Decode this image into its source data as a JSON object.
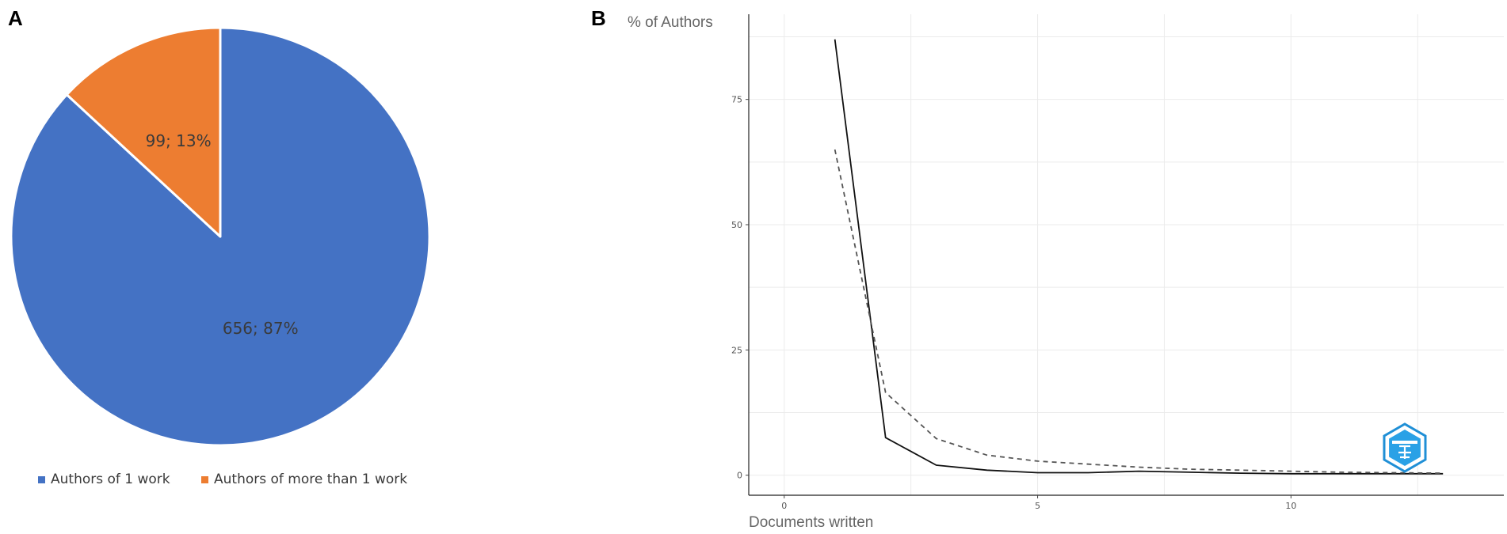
{
  "panel_labels": {
    "a": "A",
    "b": "B"
  },
  "chart_data": [
    {
      "type": "pie",
      "slices": [
        {
          "name": "Authors of 1 work",
          "value": 656,
          "percent": 87,
          "label": "656; 87%",
          "color": "#4472C4"
        },
        {
          "name": "Authors of more than 1 work",
          "value": 99,
          "percent": 13,
          "label": "99; 13%",
          "color": "#ED7D31"
        }
      ],
      "legend": [
        "Authors of 1 work",
        "Authors of more than 1 work"
      ],
      "legend_position": "bottom"
    },
    {
      "type": "line",
      "xlabel": "Documents written",
      "ylabel": "% of Authors",
      "xlim": [
        -0.7,
        14.2
      ],
      "ylim": [
        -4,
        92
      ],
      "xticks": [
        0,
        5,
        10
      ],
      "yticks": [
        0,
        25,
        50,
        75
      ],
      "grid": true,
      "series": [
        {
          "style": "solid",
          "color": "#111111",
          "x": [
            1,
            2,
            3,
            4,
            5,
            6,
            7,
            8,
            9,
            10,
            11,
            12,
            13
          ],
          "y": [
            87,
            7.5,
            2,
            1,
            0.5,
            0.5,
            0.8,
            0.6,
            0.4,
            0.3,
            0.3,
            0.3,
            0.3
          ]
        },
        {
          "style": "dashed",
          "color": "#555555",
          "x": [
            1,
            2,
            3,
            4,
            5,
            6,
            7,
            8,
            9,
            10,
            11,
            12,
            13
          ],
          "y": [
            65,
            16.5,
            7.3,
            4,
            2.8,
            2.2,
            1.6,
            1.2,
            1,
            0.8,
            0.6,
            0.5,
            0.4
          ]
        }
      ]
    }
  ]
}
